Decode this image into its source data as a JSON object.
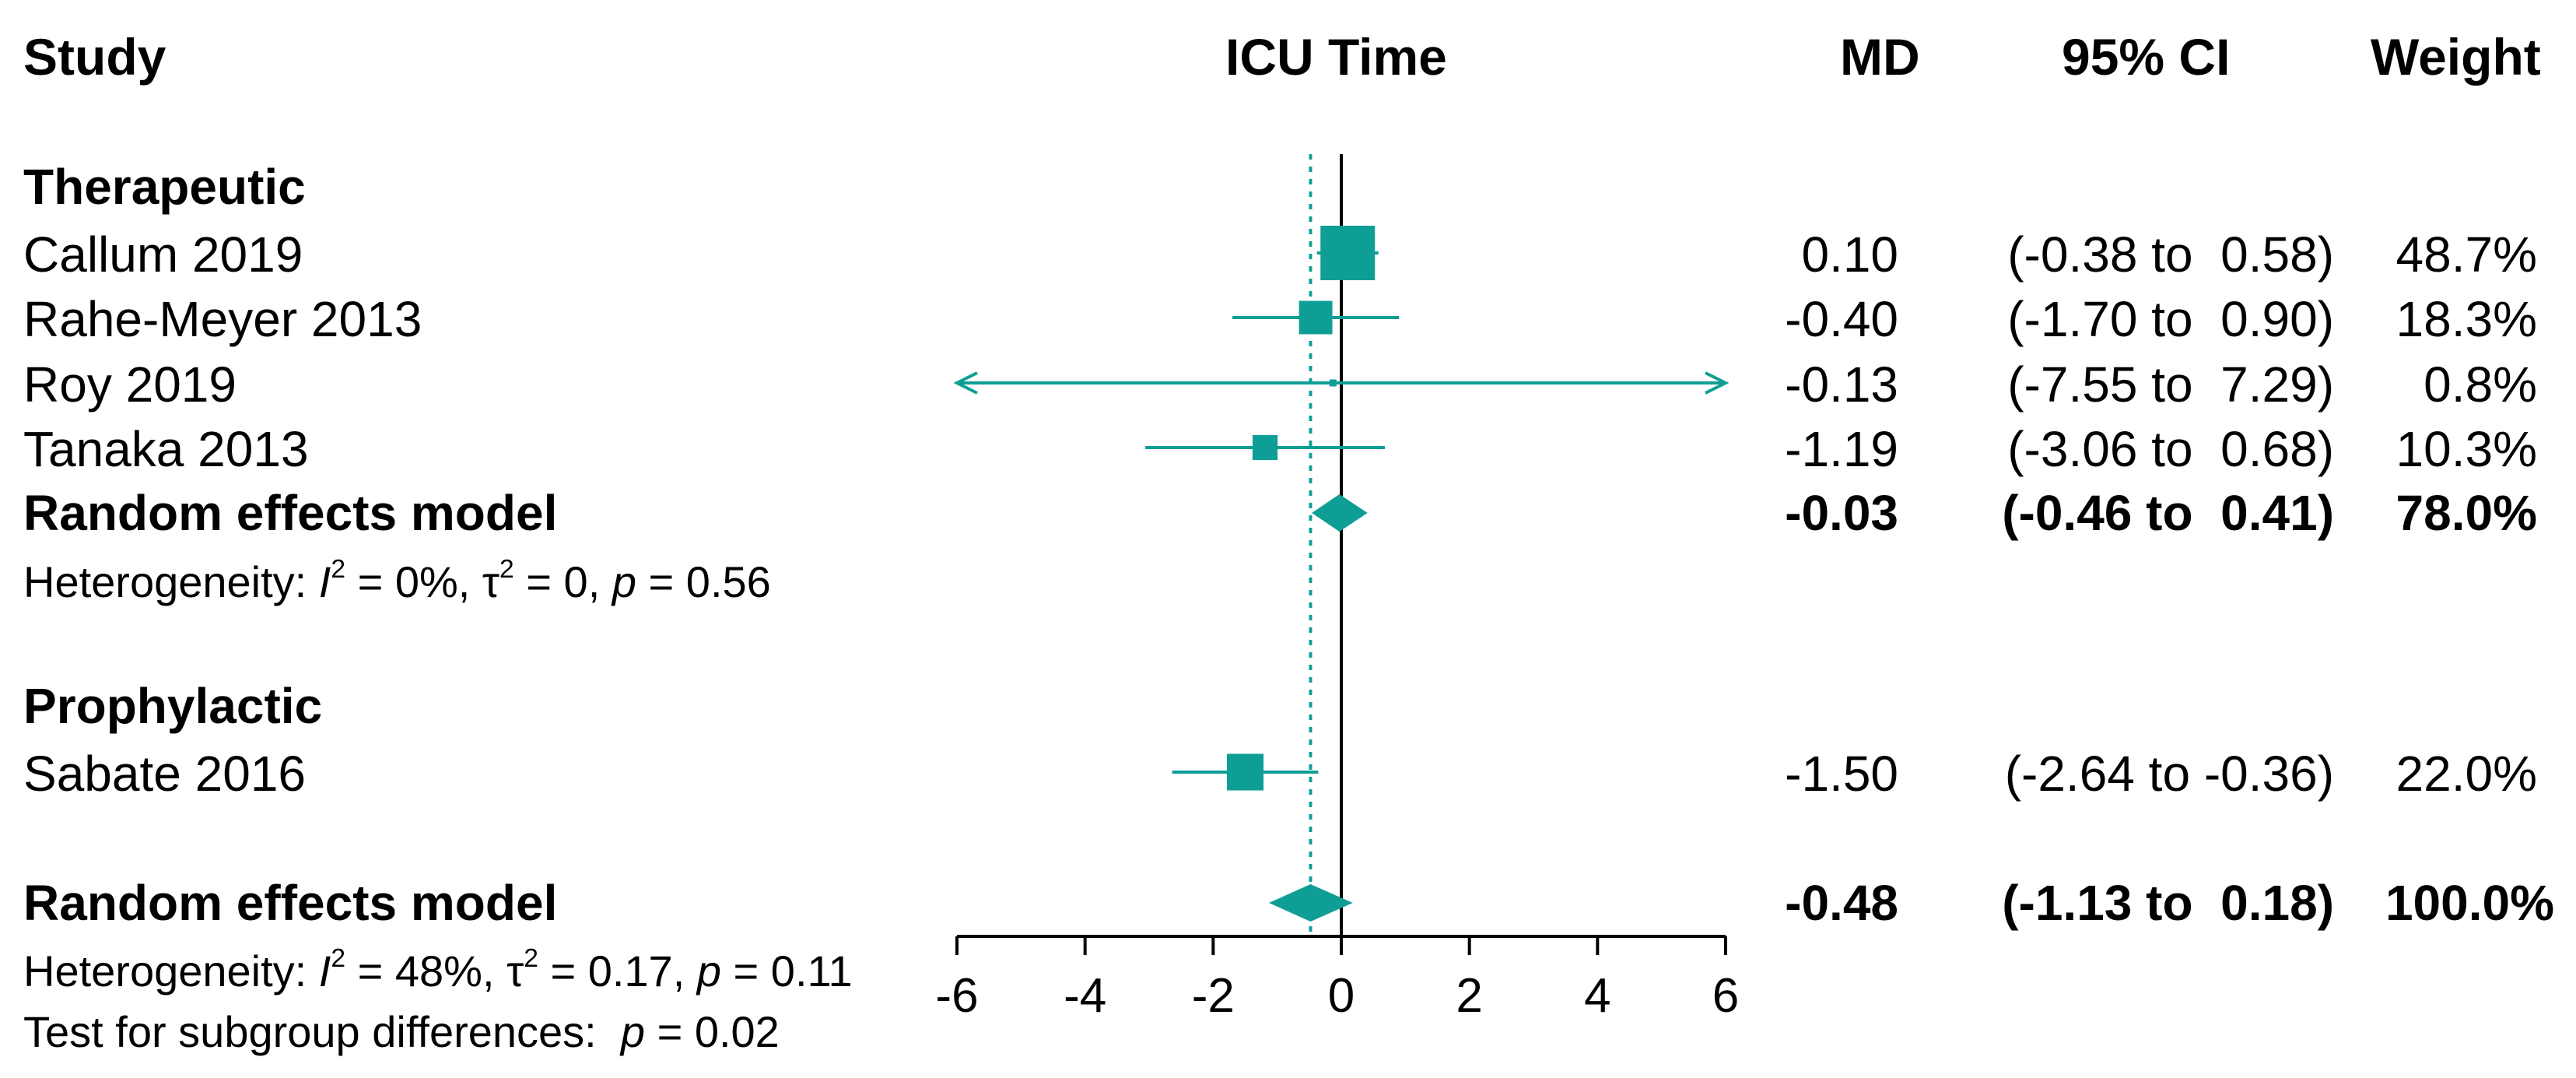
{
  "headers": {
    "study": "Study",
    "plot": "ICU Time",
    "md": "MD",
    "ci": "95% CI",
    "weight": "Weight"
  },
  "groups": [
    {
      "name": "Therapeutic",
      "studies": [
        {
          "name": "Callum 2019",
          "md": "0.10",
          "ci": "(-0.38 to  0.58)",
          "weight": "48.7%"
        },
        {
          "name": "Rahe-Meyer 2013",
          "md": "-0.40",
          "ci": "(-1.70 to  0.90)",
          "weight": "18.3%"
        },
        {
          "name": "Roy 2019",
          "md": "-0.13",
          "ci": "(-7.55 to  7.29)",
          "weight": "0.8%"
        },
        {
          "name": "Tanaka 2013",
          "md": "-1.19",
          "ci": "(-3.06 to  0.68)",
          "weight": "10.3%"
        }
      ],
      "model": {
        "name": "Random effects model",
        "md": "-0.03",
        "ci": "(-0.46 to  0.41)",
        "weight": "78.0%"
      },
      "heterogeneity": {
        "prefix": "Heterogeneity: ",
        "i2": "= 0%, ",
        "tau2": "= 0, ",
        "p": "= 0.56"
      }
    },
    {
      "name": "Prophylactic",
      "studies": [
        {
          "name": "Sabate 2016",
          "md": "-1.50",
          "ci": "(-2.64 to -0.36)",
          "weight": "22.0%"
        }
      ]
    }
  ],
  "overall": {
    "model": {
      "name": "Random effects model",
      "md": "-0.48",
      "ci": "(-1.13 to  0.18)",
      "weight": "100.0%"
    },
    "heterogeneity": {
      "prefix": "Heterogeneity: ",
      "i2": "= 48%, ",
      "tau2": "= 0.17, ",
      "p": "= 0.11"
    },
    "subgroup_test": {
      "prefix": "Test for subgroup differences:  ",
      "p": "= 0.02"
    }
  },
  "symbols": {
    "i": "I",
    "tau": "τ",
    "sq": "2",
    "p": "p"
  },
  "colors": {
    "marker": "#0f9e96",
    "axis": "#000000"
  },
  "chart_data": {
    "type": "forest",
    "xlim": [
      -6,
      6
    ],
    "xticks": [
      -6,
      -4,
      -2,
      0,
      2,
      4,
      6
    ],
    "tick_labels": [
      "-6",
      "-4",
      "-2",
      "0",
      "2",
      "4",
      "6"
    ],
    "null_line": 0,
    "overall_line": -0.48,
    "studies": [
      {
        "name": "Callum 2019",
        "md": 0.1,
        "lower": -0.38,
        "upper": 0.58,
        "weight": 48.7
      },
      {
        "name": "Rahe-Meyer 2013",
        "md": -0.4,
        "lower": -1.7,
        "upper": 0.9,
        "weight": 18.3
      },
      {
        "name": "Roy 2019",
        "md": -0.13,
        "lower": -7.55,
        "upper": 7.29,
        "weight": 0.8
      },
      {
        "name": "Tanaka 2013",
        "md": -1.19,
        "lower": -3.06,
        "upper": 0.68,
        "weight": 10.3
      },
      {
        "name": "Sabate 2016",
        "md": -1.5,
        "lower": -2.64,
        "upper": -0.36,
        "weight": 22.0
      }
    ],
    "summaries": [
      {
        "name": "Random effects model",
        "md": -0.03,
        "lower": -0.46,
        "upper": 0.41,
        "weight": 78.0
      },
      {
        "name": "Random effects model",
        "md": -0.48,
        "lower": -1.13,
        "upper": 0.18,
        "weight": 100.0
      }
    ]
  }
}
